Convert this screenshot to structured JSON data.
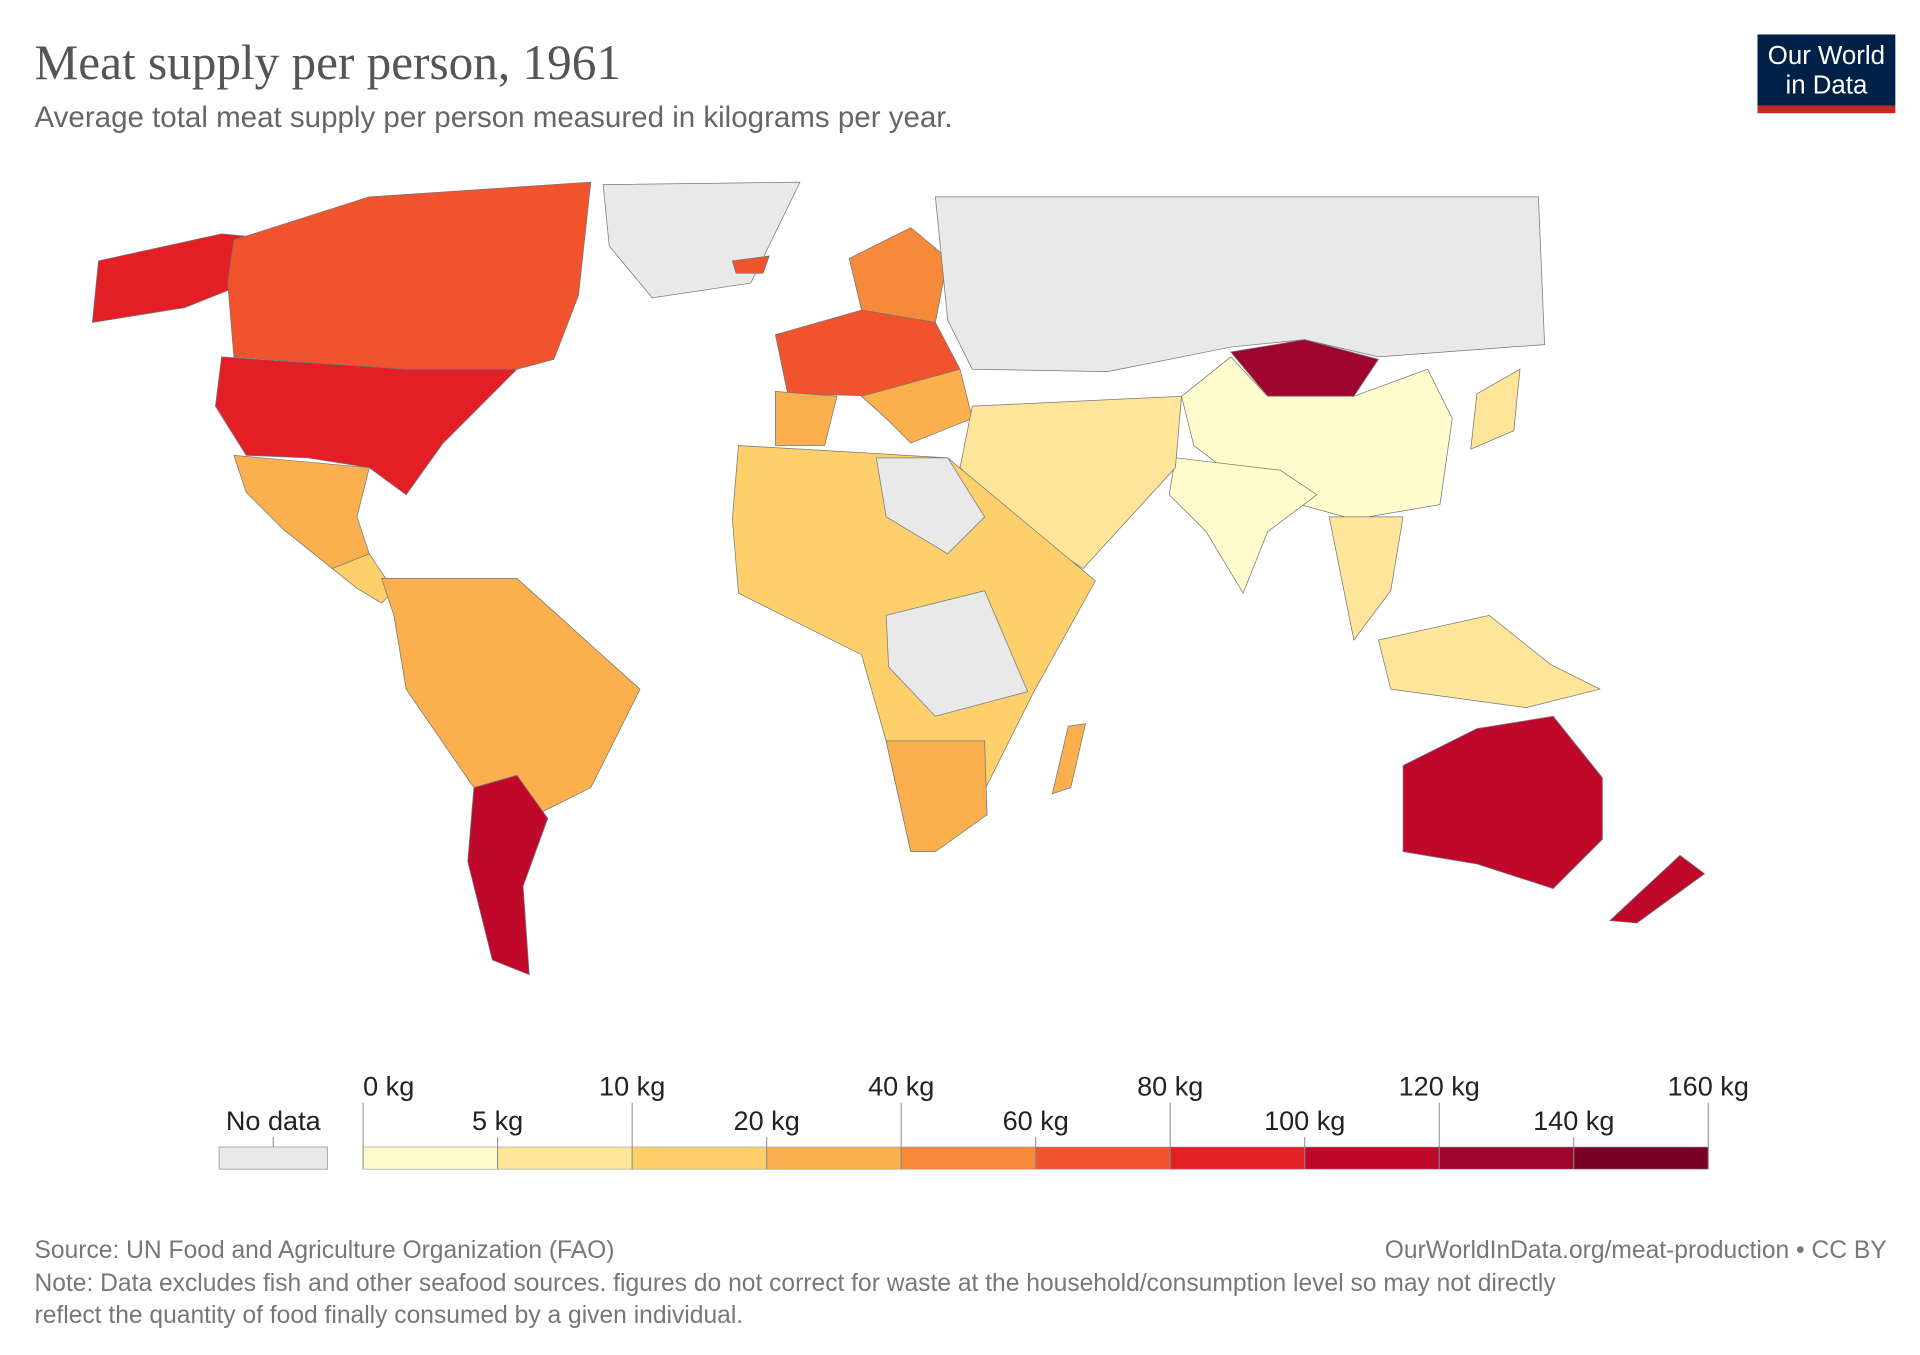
{
  "header": {
    "title": "Meat supply per person, 1961",
    "subtitle": "Average total meat supply per person measured in kilograms per year."
  },
  "logo": {
    "lines": [
      "Our World",
      "in Data"
    ]
  },
  "legend": {
    "no_data": {
      "label": "No data",
      "color": "#e9e9e9"
    },
    "ticks": [
      {
        "value": 0,
        "label": "0 kg"
      },
      {
        "value": 5,
        "label": "5 kg"
      },
      {
        "value": 10,
        "label": "10 kg"
      },
      {
        "value": 20,
        "label": "20 kg"
      },
      {
        "value": 40,
        "label": "40 kg"
      },
      {
        "value": 60,
        "label": "60 kg"
      },
      {
        "value": 80,
        "label": "80 kg"
      },
      {
        "value": 100,
        "label": "100 kg"
      },
      {
        "value": 120,
        "label": "120 kg"
      },
      {
        "value": 140,
        "label": "140 kg"
      },
      {
        "value": 160,
        "label": "160 kg"
      }
    ],
    "colors": [
      "#fffbcc",
      "#fee599",
      "#fdd06b",
      "#fbb04d",
      "#f68a3a",
      "#f1532d",
      "#e31e25",
      "#c0082a",
      "#a00530",
      "#7b0025"
    ]
  },
  "footer": {
    "source": "Source: UN Food and Agriculture Organization (FAO)",
    "url": "OurWorldInData.org/meat-production • CC BY",
    "note_lines": [
      "Note: Data excludes fish and other seafood sources. figures do not correct for waste at the household/consumption level so may not directly",
      "reflect the quantity of food finally consumed by a given individual."
    ]
  }
}
